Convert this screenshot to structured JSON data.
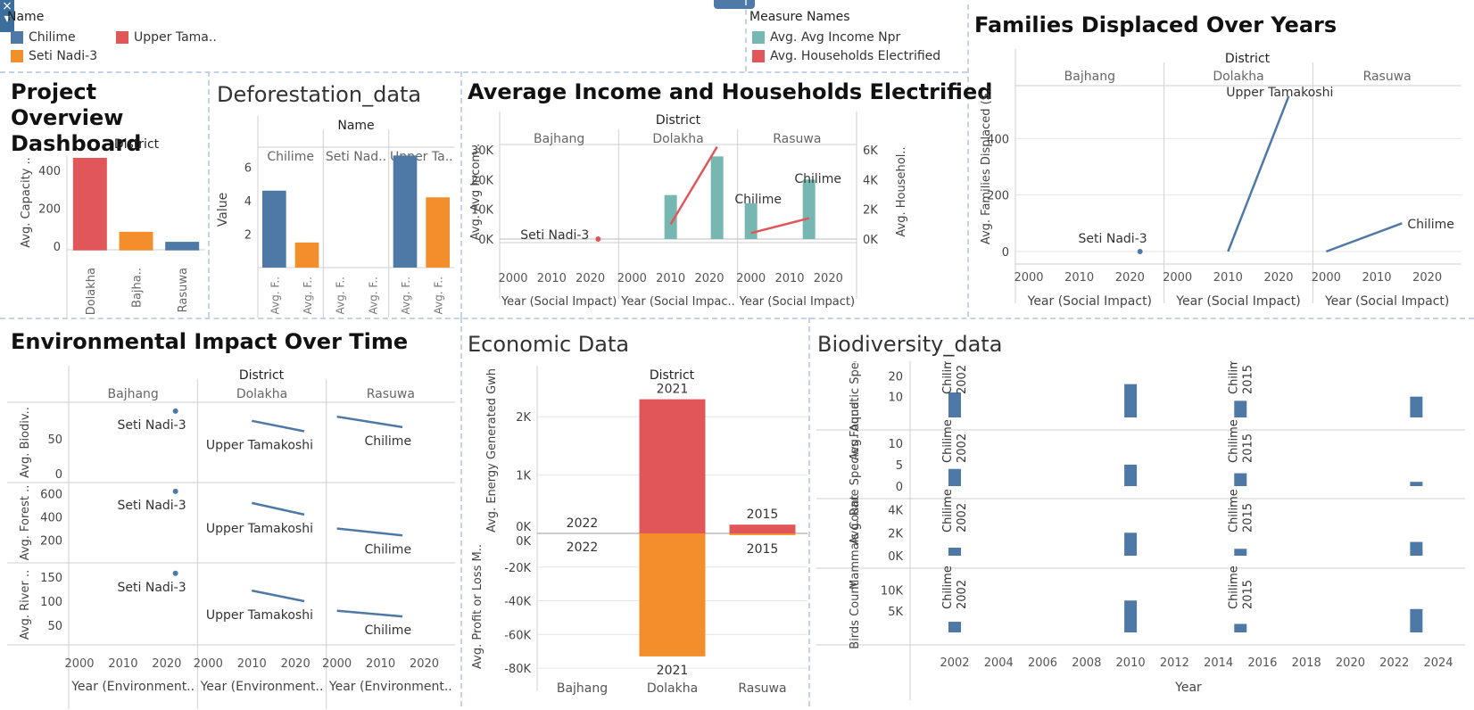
{
  "colors": {
    "blue": "#4e79a7",
    "orange": "#f28e2b",
    "red": "#e15759",
    "teal": "#76b7b2",
    "grid": "#e6e6e6",
    "axis": "#cfcfcf",
    "divider": "#c3d2e6"
  },
  "legend_name": {
    "title": "Name",
    "items": [
      {
        "label": "Chilime",
        "color": "#4e79a7"
      },
      {
        "label": "Upper Tama..",
        "color": "#e15759"
      },
      {
        "label": "Seti Nadi-3",
        "color": "#f28e2b"
      }
    ]
  },
  "legend_measures": {
    "title": "Measure Names",
    "items": [
      {
        "label": "Avg. Avg Income Npr",
        "color": "#76b7b2"
      },
      {
        "label": "Avg. Households Electrified",
        "color": "#e15759"
      }
    ]
  },
  "titles": {
    "overview": "Project Overview Dashboard",
    "deforestation": "Deforestation_data",
    "income": "Average Income and Households Electrified",
    "families": "Families Displaced Over Years",
    "environmental": "Environmental Impact Over Time",
    "economic": "Economic Data",
    "biodiversity": "Biodiversity_data"
  },
  "chart_data": [
    {
      "id": "overview",
      "type": "bar",
      "header": "District",
      "ylabel": "Avg. Capacity ..",
      "yticks": [
        "400",
        "200",
        "0"
      ],
      "ytick_values": [
        400,
        200,
        0
      ],
      "ylim": [
        -20,
        480
      ],
      "categories": [
        "Dolakha",
        "Bajha..",
        "Rasuwa"
      ],
      "values": [
        466,
        75,
        22
      ],
      "colors": [
        "#e15759",
        "#f28e2b",
        "#4e79a7"
      ]
    },
    {
      "id": "deforestation",
      "type": "bar",
      "header": "Name",
      "panels": [
        "Chilime",
        "Seti Nad..",
        "Upper Ta.."
      ],
      "ylabel": "Value",
      "yticks": [
        "6",
        "4",
        "2"
      ],
      "ytick_values": [
        6,
        4,
        2
      ],
      "ylim": [
        0,
        7.2
      ],
      "xlabels": [
        "Avg. F..",
        "Avg. F.."
      ],
      "series": [
        {
          "panel": "Chilime",
          "values": [
            4.6,
            1.5
          ]
        },
        {
          "panel": "Seti Nad..",
          "values": [
            0,
            0
          ]
        },
        {
          "panel": "Upper Ta..",
          "values": [
            6.7,
            4.2
          ]
        }
      ],
      "bar_colors": [
        [
          "#4e79a7",
          "#f28e2b"
        ],
        [
          "#4e79a7",
          "#f28e2b"
        ],
        [
          "#4e79a7",
          "#f28e2b"
        ]
      ]
    },
    {
      "id": "income",
      "type": "bar+line",
      "header": "District",
      "panels": [
        "Bajhang",
        "Dolakha",
        "Rasuwa"
      ],
      "ylabel_left": "Avg. Avg Incom..",
      "ylabel_right": "Avg. Househol..",
      "yticks_left": [
        "30K",
        "20K",
        "10K",
        "0K"
      ],
      "ytick_left_values": [
        30000,
        20000,
        10000,
        0
      ],
      "yticks_right": [
        "6K",
        "4K",
        "2K",
        "0K"
      ],
      "ytick_right_values": [
        6000,
        4000,
        2000,
        0
      ],
      "xticks": [
        "2000",
        "2010",
        "2020"
      ],
      "xtick_values": [
        2000,
        2010,
        2020
      ],
      "xlabel": "Year (Social Impact)",
      "xlabel_mid": "Year (Social Impac..",
      "income_bars": [
        {
          "panel": "Dolakha",
          "x": 2010,
          "value": 14800
        },
        {
          "panel": "Dolakha",
          "x": 2022,
          "value": 27800
        },
        {
          "panel": "Rasuwa",
          "x": 2000,
          "value": 12000
        },
        {
          "panel": "Rasuwa",
          "x": 2015,
          "value": 20000
        }
      ],
      "households_lines": [
        {
          "panel": "Bajhang",
          "points": [
            [
              2022,
              -50
            ]
          ]
        },
        {
          "panel": "Dolakha",
          "points": [
            [
              2010,
              1000
            ],
            [
              2022,
              6200
            ]
          ]
        },
        {
          "panel": "Rasuwa",
          "points": [
            [
              2000,
              400
            ],
            [
              2015,
              1400
            ]
          ]
        }
      ],
      "labels": [
        {
          "panel": "Bajhang",
          "text": "Seti Nadi-3"
        },
        {
          "panel": "Rasuwa",
          "text": "Chilime"
        },
        {
          "panel": "Rasuwa",
          "text": "Chilime"
        }
      ]
    },
    {
      "id": "families",
      "type": "line",
      "header": "District",
      "panels": [
        "Bajhang",
        "Dolakha",
        "Rasuwa"
      ],
      "ylabel": "Avg. Families Displaced (S..",
      "yticks": [
        "400",
        "200",
        "0"
      ],
      "ytick_values": [
        400,
        200,
        0
      ],
      "xticks": [
        "2000",
        "2010",
        "2020"
      ],
      "xtick_values": [
        2000,
        2010,
        2020
      ],
      "xlabel": "Year (Social Impact)",
      "series": [
        {
          "panel": "Bajhang",
          "name": "Seti Nadi-3",
          "points": [
            [
              2022,
              0
            ]
          ]
        },
        {
          "panel": "Dolakha",
          "name": "Upper Tamakoshi",
          "points": [
            [
              2010,
              0
            ],
            [
              2022,
              550
            ]
          ]
        },
        {
          "panel": "Rasuwa",
          "name": "Chilime",
          "points": [
            [
              2000,
              0
            ],
            [
              2015,
              100
            ]
          ]
        }
      ]
    },
    {
      "id": "environmental",
      "type": "line",
      "header": "District",
      "panels": [
        "Bajhang",
        "Dolakha",
        "Rasuwa"
      ],
      "rows": [
        {
          "ylabel": "Avg. Biodiv..",
          "yticks": [
            "50",
            "0"
          ],
          "ytick_values": [
            50,
            0
          ],
          "ylim": [
            -5,
            95
          ],
          "series": [
            {
              "panel": "Bajhang",
              "name": "Seti Nadi-3",
              "points": [
                [
                  2022,
                  90
                ]
              ]
            },
            {
              "panel": "Dolakha",
              "name": "Upper Tamakoshi",
              "points": [
                [
                  2010,
                  76
                ],
                [
                  2022,
                  61
                ]
              ]
            },
            {
              "panel": "Rasuwa",
              "name": "Chilime",
              "points": [
                [
                  2000,
                  82
                ],
                [
                  2015,
                  67
                ]
              ]
            }
          ]
        },
        {
          "ylabel": "Avg. Forest ..",
          "yticks": [
            "600",
            "400",
            "200"
          ],
          "ytick_values": [
            600,
            400,
            200
          ],
          "ylim": [
            50,
            650
          ],
          "series": [
            {
              "panel": "Bajhang",
              "name": "Seti Nadi-3",
              "points": [
                [
                  2022,
                  620
                ]
              ]
            },
            {
              "panel": "Dolakha",
              "name": "Upper Tamakoshi",
              "points": [
                [
                  2010,
                  520
                ],
                [
                  2022,
                  420
                ]
              ]
            },
            {
              "panel": "Rasuwa",
              "name": "Chilime",
              "points": [
                [
                  2000,
                  300
                ],
                [
                  2015,
                  240
                ]
              ]
            }
          ]
        },
        {
          "ylabel": "Avg. River ..",
          "yticks": [
            "150",
            "100",
            "50"
          ],
          "ytick_values": [
            150,
            100,
            50
          ],
          "ylim": [
            20,
            165
          ],
          "series": [
            {
              "panel": "Bajhang",
              "name": "Seti Nadi-3",
              "points": [
                [
                  2022,
                  158
                ]
              ]
            },
            {
              "panel": "Dolakha",
              "name": "Upper Tamakoshi",
              "points": [
                [
                  2010,
                  122
                ],
                [
                  2022,
                  100
                ]
              ]
            },
            {
              "panel": "Rasuwa",
              "name": "Chilime",
              "points": [
                [
                  2000,
                  80
                ],
                [
                  2015,
                  68
                ]
              ]
            }
          ]
        }
      ],
      "xticks": [
        "2000",
        "2010",
        "2020"
      ],
      "xtick_values": [
        2000,
        2010,
        2020
      ],
      "xlabel": "Year (Environment.."
    },
    {
      "id": "economic",
      "type": "bar",
      "header": "District",
      "categories": [
        "Bajhang",
        "Dolakha",
        "Rasuwa"
      ],
      "top": {
        "ylabel": "Avg. Energy Generated Gwh",
        "yticks": [
          "2K",
          "1K",
          "0K"
        ],
        "ytick_values": [
          2000,
          1000,
          0
        ],
        "values": [
          0,
          2300,
          150
        ],
        "labels": [
          "2022",
          "2021",
          "2015"
        ],
        "color": "#e15759"
      },
      "bottom": {
        "ylabel": "Avg. Profit or Loss M..",
        "yticks": [
          "0K",
          "-20K",
          "-40K",
          "-60K",
          "-80K"
        ],
        "ytick_values": [
          0,
          -20000,
          -40000,
          -60000,
          -80000
        ],
        "values": [
          0,
          -73000,
          -1000
        ],
        "labels": [
          "2022",
          "2021",
          "2015"
        ],
        "color": "#f28e2b"
      }
    },
    {
      "id": "biodiversity",
      "type": "bar",
      "xlabel": "Year",
      "xticks": [
        "2002",
        "2004",
        "2006",
        "2008",
        "2010",
        "2012",
        "2014",
        "2016",
        "2018",
        "2020",
        "2022",
        "2024"
      ],
      "xtick_values": [
        2002,
        2004,
        2006,
        2008,
        2010,
        2012,
        2014,
        2016,
        2018,
        2020,
        2022,
        2024
      ],
      "x": [
        2002,
        2010,
        2015,
        2023
      ],
      "annotations": [
        {
          "x": 2002,
          "name": "Chilime",
          "year": "2002"
        },
        {
          "x": 2015,
          "name": "Chilime",
          "year": "2015"
        }
      ],
      "rows": [
        {
          "ylabel": "Avg. Aquatic Species",
          "yticks": [
            "20",
            "10"
          ],
          "ytick_values": [
            20,
            10
          ],
          "ymax": 27,
          "values": [
            12,
            16,
            8,
            10
          ]
        },
        {
          "ylabel": "Avg. Rare Species Found",
          "yticks": [
            "10",
            "5",
            "0"
          ],
          "ytick_values": [
            10,
            5,
            0
          ],
          "ymax": 11,
          "values": [
            4,
            5,
            3,
            1
          ]
        },
        {
          "ylabel": "Mammals Count",
          "yticks": [
            "4K",
            "2K",
            "0K"
          ],
          "ytick_values": [
            4000,
            2000,
            0
          ],
          "ymax": 4200,
          "values": [
            700,
            2000,
            600,
            1200
          ]
        },
        {
          "ylabel": "Birds Count",
          "yticks": [
            "10K",
            "5K"
          ],
          "ytick_values": [
            10000,
            5000
          ],
          "ymax": 13000,
          "values": [
            2500,
            7500,
            2000,
            5500
          ]
        }
      ],
      "color": "#4e79a7"
    }
  ]
}
